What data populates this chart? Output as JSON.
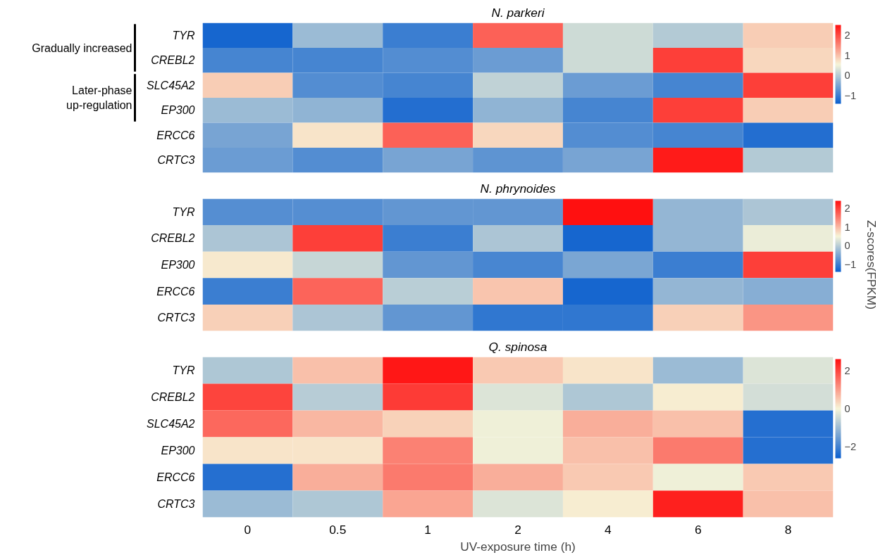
{
  "chart_data": [
    {
      "type": "heatmap",
      "title": "N. parkeri",
      "categories": [
        "0",
        "0.5",
        "1",
        "2",
        "4",
        "6",
        "8"
      ],
      "y_categories": [
        "TYR",
        "CREBL2",
        "SLC45A2",
        "EP300",
        "ERCC6",
        "CRTC3"
      ],
      "cells": [
        [
          -1.3,
          -0.2,
          -1.0,
          1.8,
          0.2,
          0.0,
          0.9
        ],
        [
          -0.9,
          -0.9,
          -0.8,
          -0.6,
          0.2,
          2.1,
          0.8
        ],
        [
          0.9,
          -0.8,
          -0.9,
          0.1,
          -0.6,
          -0.9,
          2.1
        ],
        [
          -0.2,
          -0.3,
          -1.2,
          -0.3,
          -0.9,
          2.1,
          0.9
        ],
        [
          -0.5,
          0.7,
          1.8,
          0.8,
          -0.8,
          -0.9,
          -1.2
        ],
        [
          -0.6,
          -0.8,
          -0.5,
          -0.7,
          -0.5,
          2.4,
          0.0
        ]
      ],
      "clim": [
        -1.4,
        2.5
      ],
      "cticks": [
        -1,
        0,
        1,
        2
      ],
      "tick_labels": "y",
      "annotations": [
        "Gradually increased",
        "Later-phase\nup-regulation"
      ]
    },
    {
      "type": "heatmap",
      "title": "N. phrynoides",
      "categories": [
        "0",
        "0.5",
        "1",
        "2",
        "4",
        "6",
        "8"
      ],
      "y_categories": [
        "TYR",
        "CREBL2",
        "EP300",
        "ERCC6",
        "CRTC3"
      ],
      "cells": [
        [
          -0.8,
          -0.8,
          -0.7,
          -0.7,
          2.4,
          -0.3,
          -0.1
        ],
        [
          -0.1,
          2.0,
          -1.0,
          -0.1,
          -1.3,
          -0.3,
          0.4
        ],
        [
          0.6,
          0.1,
          -0.7,
          -0.9,
          -0.5,
          -1.0,
          2.0
        ],
        [
          -1.0,
          1.7,
          0.0,
          0.9,
          -1.3,
          -0.3,
          -0.4
        ],
        [
          0.8,
          -0.1,
          -0.7,
          -1.1,
          -1.1,
          0.8,
          1.3
        ]
      ],
      "clim": [
        -1.4,
        2.4
      ],
      "cticks": [
        -1,
        0,
        1,
        2
      ],
      "clabel": "Z-scores(FPKM)",
      "tick_labels": "y"
    },
    {
      "type": "heatmap",
      "title": "Q. spinosa",
      "categories": [
        "0",
        "0.5",
        "1",
        "2",
        "4",
        "6",
        "8"
      ],
      "y_categories": [
        "TYR",
        "CREBL2",
        "SLC45A2",
        "EP300",
        "ERCC6",
        "CRTC3"
      ],
      "cells": [
        [
          -0.8,
          0.6,
          2.5,
          0.5,
          0.2,
          -1.0,
          -0.3
        ],
        [
          2.0,
          -0.7,
          2.1,
          -0.3,
          -0.8,
          0.1,
          -0.4
        ],
        [
          1.6,
          0.7,
          0.4,
          -0.1,
          0.8,
          0.6,
          -2.3
        ],
        [
          0.2,
          0.2,
          1.3,
          -0.1,
          0.6,
          1.4,
          -2.3
        ],
        [
          -2.3,
          0.8,
          1.4,
          0.8,
          0.5,
          -0.1,
          0.5
        ],
        [
          -1.0,
          -0.8,
          0.9,
          -0.3,
          0.1,
          2.4,
          0.6
        ]
      ],
      "clim": [
        -2.6,
        2.6
      ],
      "cticks": [
        -2,
        0,
        2
      ],
      "xlabel": "UV-exposure time (h)"
    }
  ]
}
